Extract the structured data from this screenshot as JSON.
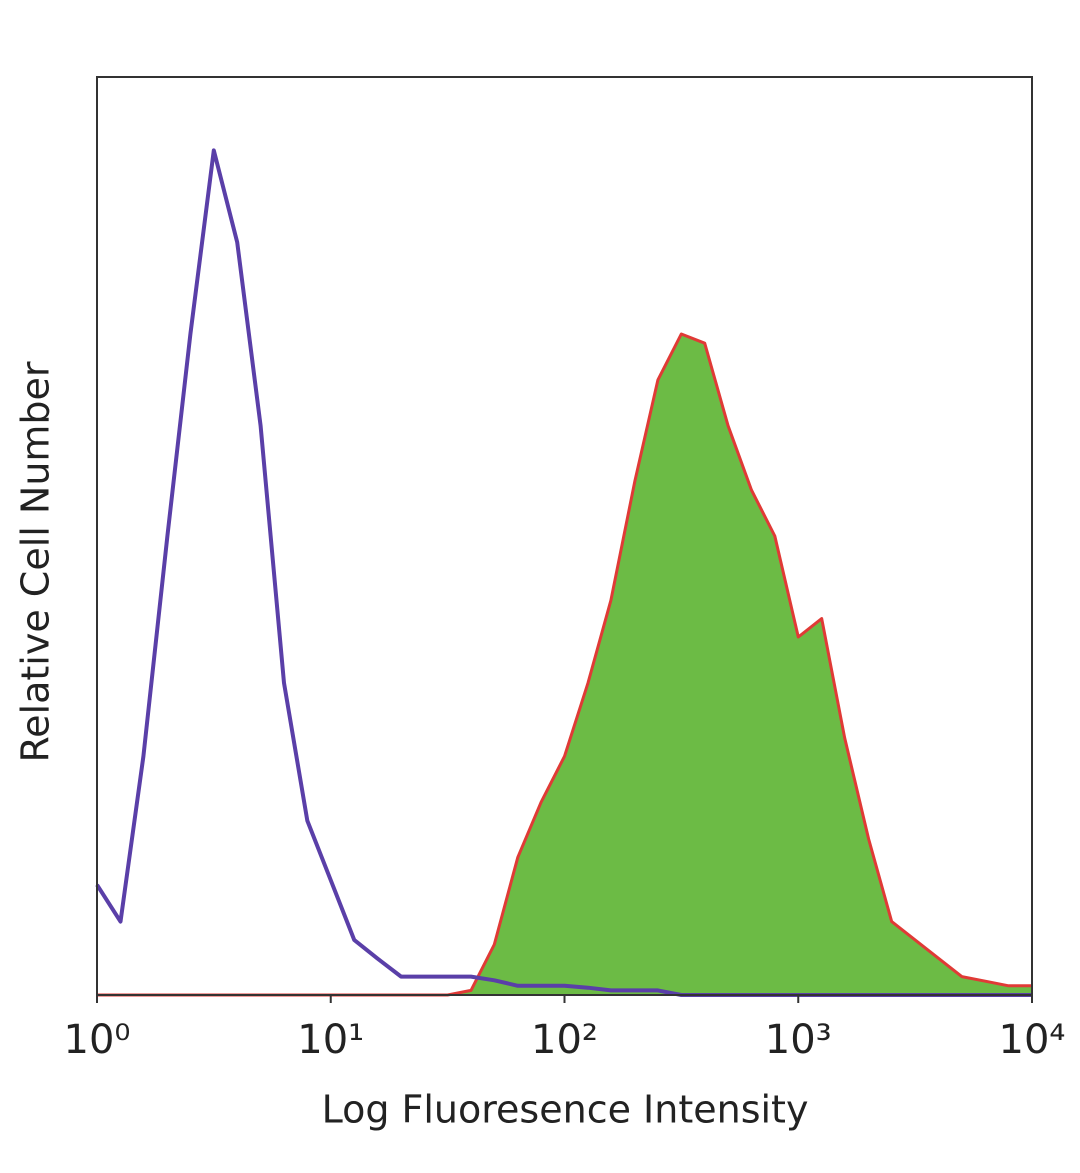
{
  "chart_data": {
    "type": "histogram-overlay",
    "x_label": "Log Fluoresence Intensity",
    "y_label": "Relative Cell Number",
    "log_x": true,
    "xlim": [
      1,
      10000
    ],
    "ylim": [
      0,
      100
    ],
    "xticks": [
      {
        "value": 1,
        "label": "10⁰"
      },
      {
        "value": 10,
        "label": "10¹"
      },
      {
        "value": 100,
        "label": "10²"
      },
      {
        "value": 1000,
        "label": "10³"
      },
      {
        "value": 10000,
        "label": "10⁴"
      }
    ],
    "x": [
      1,
      1.26,
      1.58,
      2,
      2.51,
      3.16,
      3.98,
      5.01,
      6.31,
      7.94,
      10,
      12.6,
      15.8,
      20,
      25.1,
      31.6,
      39.8,
      50.1,
      63.1,
      79.4,
      100,
      126,
      158,
      200,
      251,
      316,
      398,
      501,
      631,
      794,
      1000,
      1260,
      1580,
      2000,
      2510,
      3160,
      3980,
      5010,
      6310,
      7940,
      10000
    ],
    "series": [
      {
        "style": "outline",
        "color": "#5a3fa8",
        "values": [
          12,
          8,
          26,
          50,
          72,
          92,
          82,
          62,
          34,
          19,
          12.5,
          6,
          4,
          2,
          2,
          2,
          2,
          1.6,
          1,
          1,
          1,
          0.8,
          0.5,
          0.5,
          0.5,
          0,
          0,
          0,
          0,
          0,
          0,
          0,
          0,
          0,
          0,
          0,
          0,
          0,
          0,
          0,
          0
        ]
      },
      {
        "style": "filled",
        "color": "#6cbb45",
        "edge_color": "#e03a36",
        "values": [
          0,
          0,
          0,
          0,
          0,
          0,
          0,
          0,
          0,
          0,
          0,
          0,
          0,
          0,
          0,
          0,
          0.5,
          5.5,
          15,
          21,
          26,
          34,
          43,
          56,
          67,
          72,
          71,
          62,
          55,
          50,
          39,
          41,
          28,
          17,
          8,
          6,
          4,
          2,
          1.5,
          1,
          1
        ]
      }
    ]
  }
}
